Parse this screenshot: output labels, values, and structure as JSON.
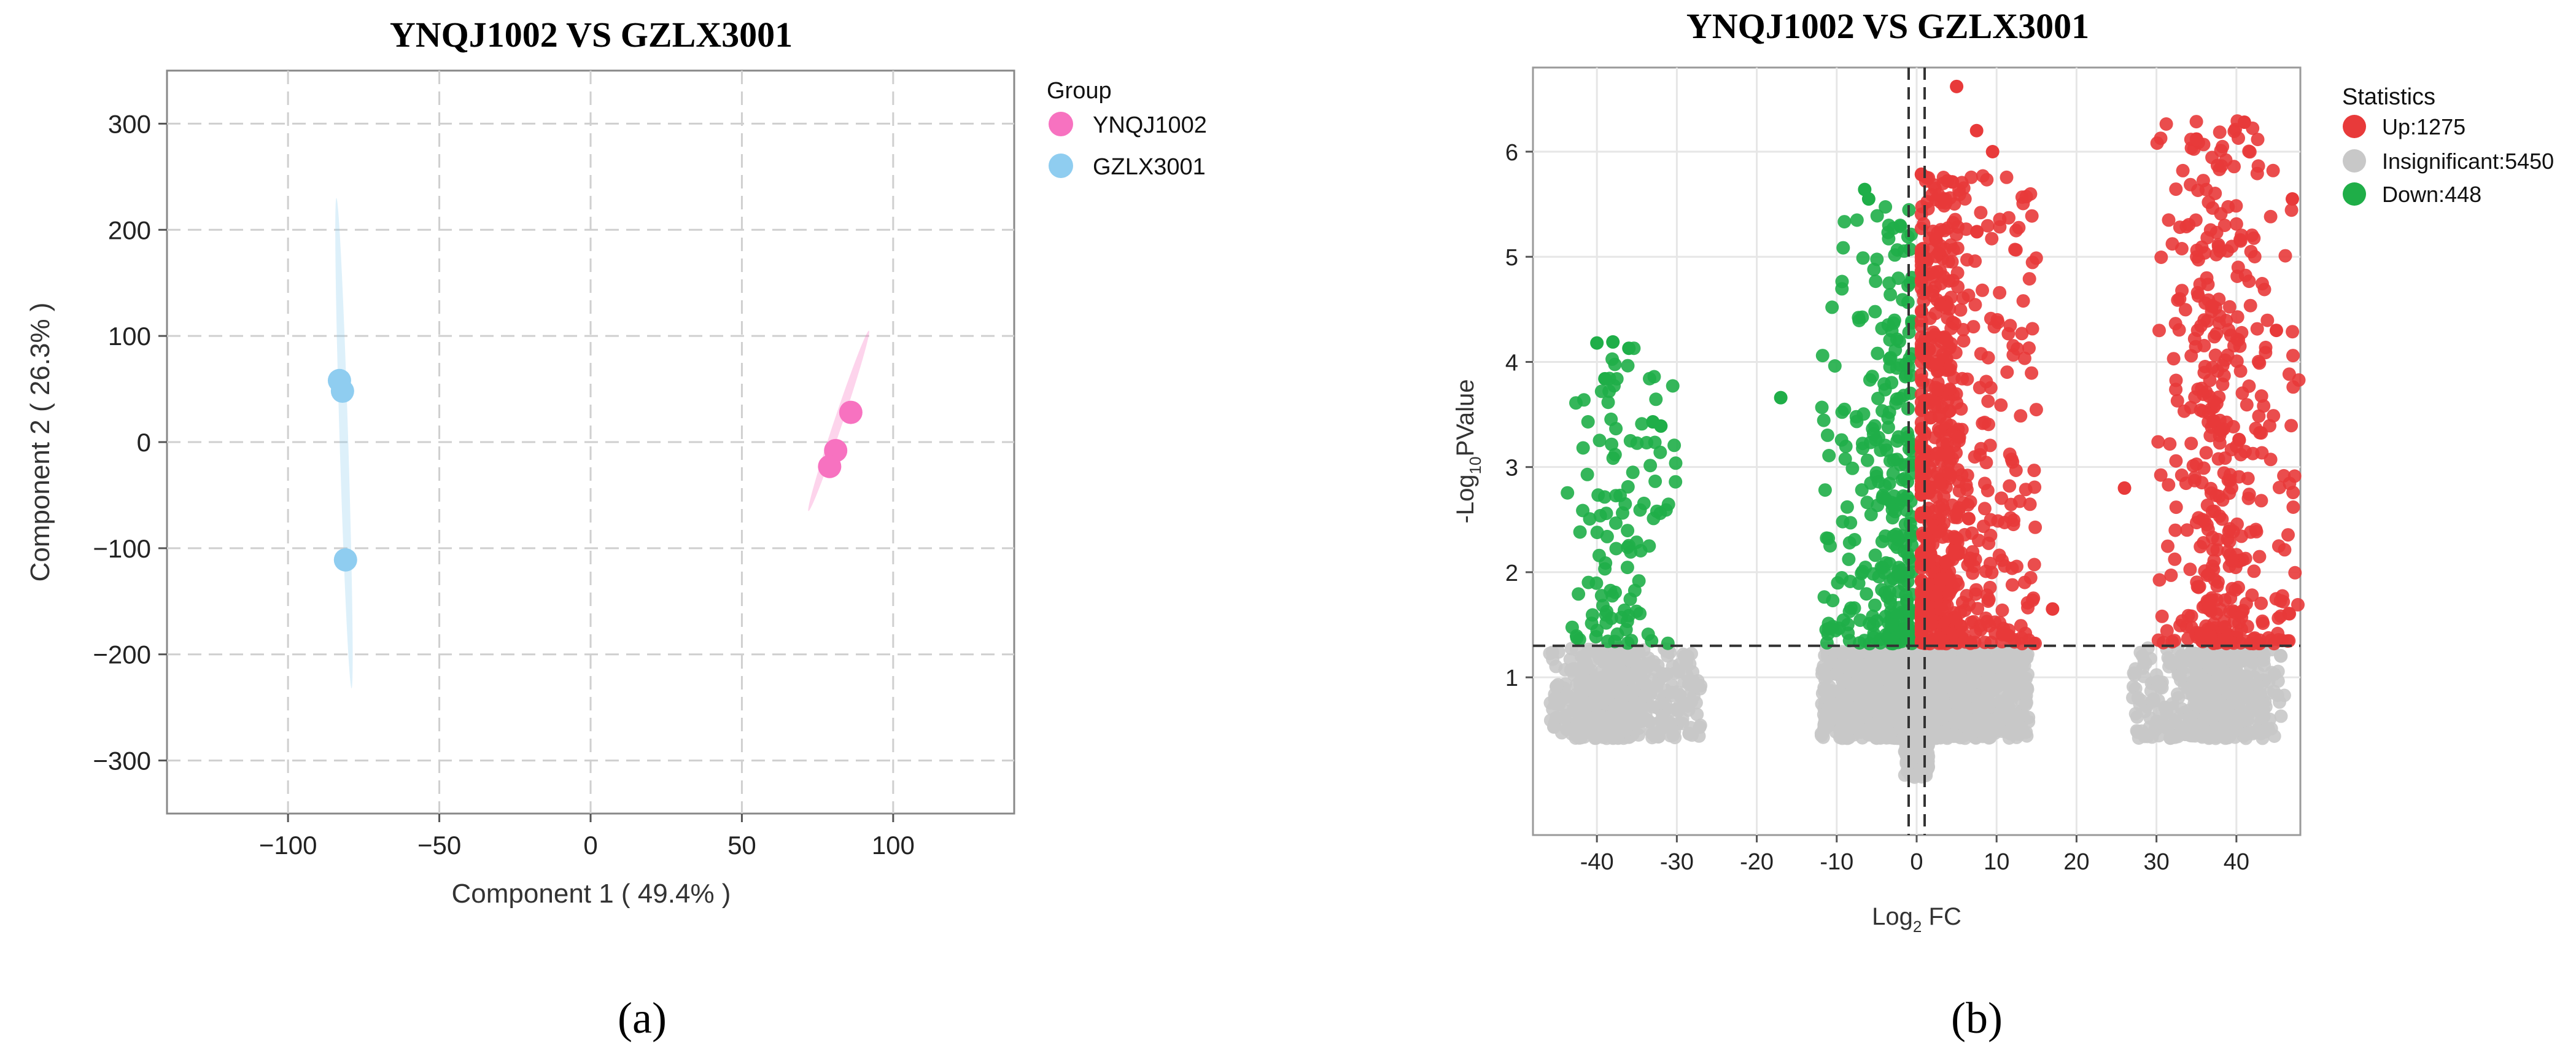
{
  "chart_data": [
    {
      "type": "scatter",
      "panel_label": "(a)",
      "title": "YNQJ1002 VS GZLX3001",
      "xlabel": "Component 1 ( 49.4% )",
      "ylabel": "Component 2 ( 26.3% )",
      "xlim": [
        -140,
        140
      ],
      "ylim": [
        -350,
        350
      ],
      "xticks": [
        -100,
        -50,
        0,
        50,
        100
      ],
      "yticks": [
        -300,
        -200,
        -100,
        0,
        100,
        200,
        300
      ],
      "grid": "dashed",
      "legend_title": "Group",
      "legend_position": "right",
      "series": [
        {
          "name": "YNQJ1002",
          "color": "#f772c0",
          "points": [
            [
              86,
              28
            ],
            [
              81,
              -8
            ],
            [
              79,
              -23
            ]
          ],
          "ellipse_axis": [
            [
              72,
              -65
            ],
            [
              92,
              105
            ]
          ]
        },
        {
          "name": "GZLX3001",
          "color": "#8fcdf0",
          "points": [
            [
              -83,
              58
            ],
            [
              -82,
              48
            ],
            [
              -81,
              -111
            ]
          ],
          "ellipse_axis": [
            [
              -84,
              230
            ],
            [
              -79,
              -232
            ]
          ]
        }
      ]
    },
    {
      "type": "scatter",
      "panel_label": "(b)",
      "title": "YNQJ1002 VS GZLX3001",
      "xlabel_main": "Log",
      "xlabel_sub": "2",
      "xlabel_rest": " FC",
      "ylabel_main": "-Log",
      "ylabel_sub": "10",
      "ylabel_rest": "PValue",
      "xlim": [
        -48,
        48
      ],
      "ylim": [
        -0.5,
        6.8
      ],
      "xticks": [
        -40,
        -30,
        -20,
        -10,
        0,
        10,
        20,
        30,
        40
      ],
      "yticks": [
        1,
        2,
        3,
        4,
        5,
        6
      ],
      "grid": "solid",
      "thresholds": {
        "log2fc": [
          -1,
          1
        ],
        "neg_log10_p": 1.3
      },
      "legend_title": "Statistics",
      "legend_position": "right",
      "series": [
        {
          "name": "Up:1275",
          "color": "#e83a3a",
          "clusters": [
            {
              "x": [
                0.6,
                15
              ],
              "y": [
                1.32,
                5.8
              ],
              "n": 700,
              "dense_x": 2.5
            },
            {
              "x": [
                30,
                48
              ],
              "y": [
                1.32,
                6.3
              ],
              "n": 420,
              "dense_x": 38
            }
          ],
          "outliers": [
            [
              5.0,
              6.62
            ],
            [
              7.5,
              6.2
            ],
            [
              9.5,
              6.0
            ],
            [
              41,
              6.28
            ],
            [
              35,
              6.12
            ],
            [
              26,
              2.8
            ],
            [
              17,
              1.65
            ],
            [
              47,
              5.55
            ],
            [
              45,
              4.3
            ]
          ]
        },
        {
          "name": "Insignificant:5450",
          "color": "#c8c8c8",
          "clusters": [
            {
              "x": [
                -12,
                14
              ],
              "y": [
                0.05,
                1.28
              ],
              "n": 1900,
              "dense_x": 0
            },
            {
              "x": [
                -46,
                -27
              ],
              "y": [
                0.42,
                1.28
              ],
              "n": 520,
              "dense_x": -38
            },
            {
              "x": [
                27,
                46
              ],
              "y": [
                0.42,
                1.28
              ],
              "n": 520,
              "dense_x": 38
            }
          ]
        },
        {
          "name": "Down:448",
          "color": "#1fae48",
          "clusters": [
            {
              "x": [
                -12,
                -0.6
              ],
              "y": [
                1.32,
                5.5
              ],
              "n": 300,
              "dense_x": -2
            },
            {
              "x": [
                -44,
                -30
              ],
              "y": [
                1.32,
                4.2
              ],
              "n": 110,
              "dense_x": -37
            }
          ],
          "outliers": [
            [
              -6.5,
              5.64
            ],
            [
              -6.0,
              5.55
            ],
            [
              -17,
              3.66
            ],
            [
              -38,
              4.19
            ],
            [
              -40,
              4.18
            ],
            [
              -36,
              4.13
            ],
            [
              -39,
              3.84
            ],
            [
              -33,
              3.43
            ],
            [
              -32,
              3.39
            ]
          ]
        }
      ]
    }
  ]
}
